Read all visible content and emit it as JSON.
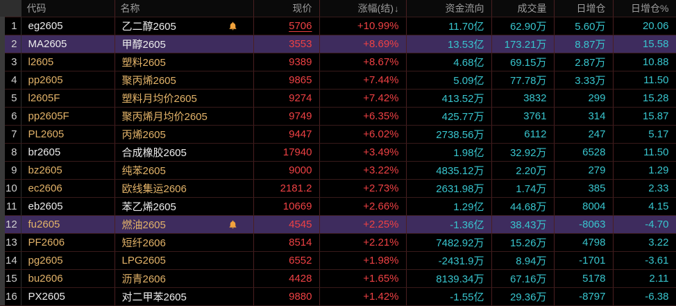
{
  "colors": {
    "up_red": "#ef4144",
    "value_cyan": "#38c5ce",
    "gold_instrument": "#e3b369",
    "white_instrument": "#ededed",
    "highlight_purple": "#3e2c5e",
    "header_gray": "#9c9c9c",
    "bell_orange": "#f2a33c"
  },
  "table": {
    "columns": [
      {
        "key": "num",
        "label": "",
        "align": "right"
      },
      {
        "key": "code",
        "label": "代码",
        "align": "left"
      },
      {
        "key": "name",
        "label": "名称",
        "align": "left"
      },
      {
        "key": "price",
        "label": "现价",
        "align": "right"
      },
      {
        "key": "change",
        "label": "涨幅(结)",
        "sort_icon": "↓",
        "align": "right"
      },
      {
        "key": "flow",
        "label": "资金流向",
        "align": "right"
      },
      {
        "key": "volume",
        "label": "成交量",
        "align": "right"
      },
      {
        "key": "oi_change",
        "label": "日增仓",
        "align": "right"
      },
      {
        "key": "oi_change_pct",
        "label": "日增仓%",
        "align": "right"
      }
    ],
    "rows": [
      {
        "num": "1",
        "code": "eg2605",
        "name": "乙二醇2605",
        "bell": true,
        "price": "5706",
        "price_underline": true,
        "change": "+10.99%",
        "flow": "11.70亿",
        "volume": "62.90万",
        "oi_change": "5.60万",
        "oi_change_pct": "20.06",
        "tone": "white",
        "highlight": false
      },
      {
        "num": "2",
        "code": "MA2605",
        "name": "甲醇2605",
        "bell": false,
        "price": "3553",
        "price_underline": false,
        "change": "+8.69%",
        "flow": "13.53亿",
        "volume": "173.21万",
        "oi_change": "8.87万",
        "oi_change_pct": "15.58",
        "tone": "white",
        "highlight": true
      },
      {
        "num": "3",
        "code": "l2605",
        "name": "塑料2605",
        "bell": false,
        "price": "9389",
        "price_underline": false,
        "change": "+8.67%",
        "flow": "4.68亿",
        "volume": "69.15万",
        "oi_change": "2.87万",
        "oi_change_pct": "10.88",
        "tone": "gold",
        "highlight": false
      },
      {
        "num": "4",
        "code": "pp2605",
        "name": "聚丙烯2605",
        "bell": false,
        "price": "9865",
        "price_underline": false,
        "change": "+7.44%",
        "flow": "5.09亿",
        "volume": "77.78万",
        "oi_change": "3.33万",
        "oi_change_pct": "11.50",
        "tone": "gold",
        "highlight": false
      },
      {
        "num": "5",
        "code": "l2605F",
        "name": "塑料月均价2605",
        "bell": false,
        "price": "9274",
        "price_underline": false,
        "change": "+7.42%",
        "flow": "413.52万",
        "volume": "3832",
        "oi_change": "299",
        "oi_change_pct": "15.28",
        "tone": "gold",
        "highlight": false
      },
      {
        "num": "6",
        "code": "pp2605F",
        "name": "聚丙烯月均价2605",
        "bell": false,
        "price": "9749",
        "price_underline": false,
        "change": "+6.35%",
        "flow": "425.77万",
        "volume": "3761",
        "oi_change": "314",
        "oi_change_pct": "15.87",
        "tone": "gold",
        "highlight": false
      },
      {
        "num": "7",
        "code": "PL2605",
        "name": "丙烯2605",
        "bell": false,
        "price": "9447",
        "price_underline": false,
        "change": "+6.02%",
        "flow": "2738.56万",
        "volume": "6112",
        "oi_change": "247",
        "oi_change_pct": "5.17",
        "tone": "gold",
        "highlight": false
      },
      {
        "num": "8",
        "code": "br2605",
        "name": "合成橡胶2605",
        "bell": false,
        "price": "17940",
        "price_underline": false,
        "change": "+3.49%",
        "flow": "1.98亿",
        "volume": "32.92万",
        "oi_change": "6528",
        "oi_change_pct": "11.50",
        "tone": "white",
        "highlight": false
      },
      {
        "num": "9",
        "code": "bz2605",
        "name": "纯苯2605",
        "bell": false,
        "price": "9000",
        "price_underline": false,
        "change": "+3.22%",
        "flow": "4835.12万",
        "volume": "2.20万",
        "oi_change": "279",
        "oi_change_pct": "1.29",
        "tone": "gold",
        "highlight": false
      },
      {
        "num": "10",
        "code": "ec2606",
        "name": "欧线集运2606",
        "bell": false,
        "price": "2181.2",
        "price_underline": false,
        "change": "+2.73%",
        "flow": "2631.98万",
        "volume": "1.74万",
        "oi_change": "385",
        "oi_change_pct": "2.33",
        "tone": "gold",
        "highlight": false
      },
      {
        "num": "11",
        "code": "eb2605",
        "name": "苯乙烯2605",
        "bell": false,
        "price": "10669",
        "price_underline": false,
        "change": "+2.66%",
        "flow": "1.29亿",
        "volume": "44.68万",
        "oi_change": "8004",
        "oi_change_pct": "4.15",
        "tone": "white",
        "highlight": false
      },
      {
        "num": "12",
        "code": "fu2605",
        "name": "燃油2605",
        "bell": true,
        "price": "4545",
        "price_underline": false,
        "change": "+2.25%",
        "flow": "-1.36亿",
        "volume": "38.43万",
        "oi_change": "-8063",
        "oi_change_pct": "-4.70",
        "tone": "gold",
        "highlight": true
      },
      {
        "num": "13",
        "code": "PF2606",
        "name": "短纤2606",
        "bell": false,
        "price": "8514",
        "price_underline": false,
        "change": "+2.21%",
        "flow": "7482.92万",
        "volume": "15.26万",
        "oi_change": "4798",
        "oi_change_pct": "3.22",
        "tone": "gold",
        "highlight": false
      },
      {
        "num": "14",
        "code": "pg2605",
        "name": "LPG2605",
        "bell": false,
        "price": "6552",
        "price_underline": false,
        "change": "+1.98%",
        "flow": "-2431.9万",
        "volume": "8.94万",
        "oi_change": "-1701",
        "oi_change_pct": "-3.61",
        "tone": "gold",
        "highlight": false
      },
      {
        "num": "15",
        "code": "bu2606",
        "name": "沥青2606",
        "bell": false,
        "price": "4428",
        "price_underline": false,
        "change": "+1.65%",
        "flow": "8139.34万",
        "volume": "67.16万",
        "oi_change": "5178",
        "oi_change_pct": "2.11",
        "tone": "gold",
        "highlight": false
      },
      {
        "num": "16",
        "code": "PX2605",
        "name": "对二甲苯2605",
        "bell": false,
        "price": "9880",
        "price_underline": false,
        "change": "+1.42%",
        "flow": "-1.55亿",
        "volume": "29.36万",
        "oi_change": "-8797",
        "oi_change_pct": "-6.38",
        "tone": "white",
        "highlight": false
      }
    ]
  }
}
